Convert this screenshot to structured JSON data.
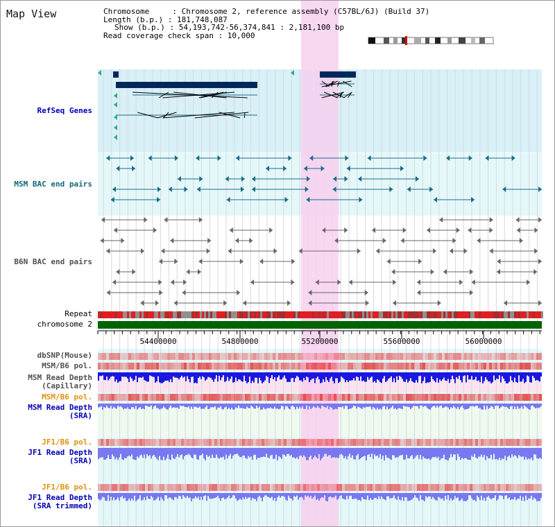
{
  "title": "Map View",
  "info": {
    "line1": "Chromosome     : Chromosome 2, reference assembly (C57BL/6J) (Build 37)",
    "line2": "Length (b.p.) : 181,748,087",
    "line3": "Show (b.p.) : 54,193,742-56,374,841 : 2,181,100 bp",
    "line4": "Read coverage check span : 10,000"
  },
  "colors": {
    "highlight": "#f7d0ee",
    "refseq_bg": "#d8f0f8",
    "track_bg": "#e4f8fa",
    "gene": "#00285a",
    "msm_bac": "#1a6b86",
    "b6n_bac": "#666666",
    "repeat_red": "#e02020",
    "chromosome": "#006400",
    "depth_blue": "#1818e0",
    "depth_light": "#7878f0",
    "label_blue": "#0000b4",
    "label_teal": "#106878",
    "label_orange": "#e09010"
  },
  "tracks": {
    "refseq": "RefSeq Genes",
    "msm_bac": "MSM BAC end pairs",
    "b6n_bac": "B6N BAC end pairs",
    "repeat": "Repeat",
    "chromosome": "chromosome 2",
    "dbsnp": "dbSNP(Mouse)",
    "msm_b6_pol_1": "MSM/B6 pol.",
    "msm_read_depth_cap": "MSM Read Depth\n(Capillary)",
    "msm_b6_pol_2": "MSM/B6 pol.",
    "msm_read_depth_sra": "MSM Read Depth\n(SRA)",
    "jf1_b6_pol_1": "JF1/B6 pol.",
    "jf1_read_depth_sra": "JF1 Read Depth\n(SRA)",
    "jf1_b6_pol_2": "JF1/B6 pol.",
    "jf1_read_depth_trim": "JF1 Read Depth\n(SRA trimmed)"
  },
  "axis": {
    "ticks": [
      "54400000",
      "54800000",
      "55200000",
      "55600000",
      "56000000"
    ]
  }
}
